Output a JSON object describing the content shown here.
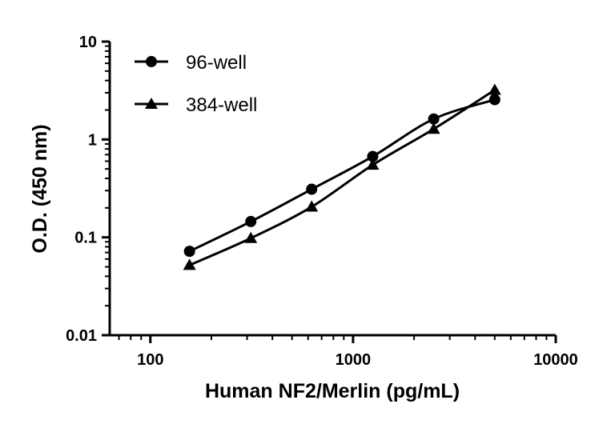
{
  "chart_data": {
    "type": "line",
    "xlabel": "Human NF2/Merlin (pg/mL)",
    "ylabel": "O.D. (450 nm)",
    "xscale": "log",
    "yscale": "log",
    "xlim": [
      63,
      10000
    ],
    "ylim": [
      0.01,
      10
    ],
    "xticks": [
      100,
      1000,
      10000
    ],
    "xtick_labels": [
      "100",
      "1000",
      "10000"
    ],
    "yticks": [
      0.01,
      0.1,
      1,
      10
    ],
    "ytick_labels": [
      "0.01",
      "0.1",
      "1",
      "10"
    ],
    "grid": false,
    "legend_position": "top-left",
    "series": [
      {
        "name": "96-well",
        "marker": "circle",
        "x": [
          156,
          313,
          625,
          1250,
          2500,
          5000
        ],
        "y": [
          0.072,
          0.145,
          0.31,
          0.67,
          1.62,
          2.55
        ]
      },
      {
        "name": "384-well",
        "marker": "triangle",
        "x": [
          156,
          313,
          625,
          1250,
          2500,
          5000
        ],
        "y": [
          0.052,
          0.098,
          0.205,
          0.55,
          1.28,
          3.2
        ]
      }
    ]
  }
}
